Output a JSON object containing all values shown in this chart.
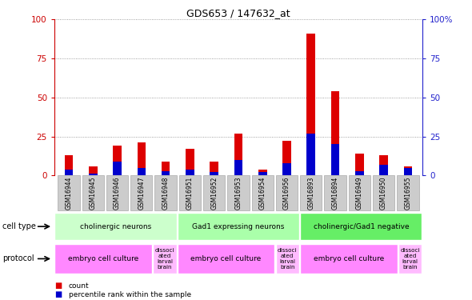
{
  "title": "GDS653 / 147632_at",
  "samples": [
    "GSM16944",
    "GSM16945",
    "GSM16946",
    "GSM16947",
    "GSM16948",
    "GSM16951",
    "GSM16952",
    "GSM16953",
    "GSM16954",
    "GSM16956",
    "GSM16893",
    "GSM16894",
    "GSM16949",
    "GSM16950",
    "GSM16955"
  ],
  "count_values": [
    13,
    6,
    19,
    21,
    9,
    17,
    9,
    27,
    4,
    22,
    91,
    54,
    14,
    13,
    6
  ],
  "pct_values": [
    4,
    1,
    9,
    5,
    3,
    4,
    2,
    10,
    2,
    8,
    27,
    20,
    3,
    7,
    5
  ],
  "ylim": [
    0,
    100
  ],
  "yticks": [
    0,
    25,
    50,
    75,
    100
  ],
  "right_ytick_labels": [
    "0",
    "25",
    "50",
    "75",
    "100%"
  ],
  "bar_width": 0.35,
  "count_color": "#dd0000",
  "pct_color": "#0000cc",
  "grid_color": "#888888",
  "cell_type_groups": [
    {
      "label": "cholinergic neurons",
      "start": 0,
      "end": 5,
      "color": "#ccffcc"
    },
    {
      "label": "Gad1 expressing neurons",
      "start": 5,
      "end": 10,
      "color": "#aaffaa"
    },
    {
      "label": "cholinergic/Gad1 negative",
      "start": 10,
      "end": 15,
      "color": "#66ee66"
    }
  ],
  "protocol_groups": [
    {
      "label": "embryo cell culture",
      "start": 0,
      "end": 4,
      "color": "#ff88ff"
    },
    {
      "label": "dissoci\nated\nlarval\nbrain",
      "start": 4,
      "end": 5,
      "color": "#ffbbff"
    },
    {
      "label": "embryo cell culture",
      "start": 5,
      "end": 9,
      "color": "#ff88ff"
    },
    {
      "label": "dissoci\nated\nlarval\nbrain",
      "start": 9,
      "end": 10,
      "color": "#ffbbff"
    },
    {
      "label": "embryo cell culture",
      "start": 10,
      "end": 14,
      "color": "#ff88ff"
    },
    {
      "label": "dissoci\nated\nlarval\nbrain",
      "start": 14,
      "end": 15,
      "color": "#ffbbff"
    }
  ],
  "left_axis_color": "#cc0000",
  "right_axis_color": "#2222cc",
  "bg_color": "#ffffff",
  "xtick_box_color": "#cccccc",
  "xtick_box_edge": "#aaaaaa"
}
